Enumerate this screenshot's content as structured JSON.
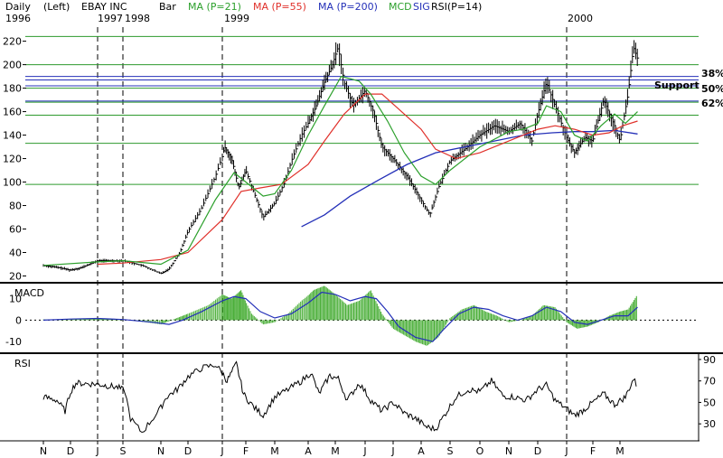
{
  "header": {
    "period": "Daily",
    "axis": "(Left)",
    "symbol": "EBAY INC",
    "style": "Bar",
    "ma21": "MA (P=21)",
    "ma55": "MA (P=55)",
    "ma200": "MA (P=200)",
    "mcd": "MCD",
    "sig": "SIG",
    "rsi": "RSI(P=14)"
  },
  "colors": {
    "price": "#000000",
    "ma21": "#2ca02c",
    "ma55": "#e0302a",
    "ma200": "#2430b8",
    "macd_hist": "#4caf3a",
    "signal": "#2430b8",
    "hline": "#2e9a2e",
    "fib": "#2430b8"
  },
  "year_labels": [
    "1996",
    "1997",
    "1998",
    "1999",
    "2000"
  ],
  "month_labels": [
    "N",
    "D",
    "J",
    "S",
    "N",
    "D",
    "J",
    "F",
    "M",
    "A",
    "M",
    "J",
    "J",
    "A",
    "S",
    "O",
    "N",
    "D",
    "J",
    "F",
    "M"
  ],
  "chart_data": [
    {
      "type": "ohlc",
      "panel": "price",
      "ylim": [
        15,
        232
      ],
      "yticks": [
        20,
        40,
        60,
        80,
        100,
        120,
        140,
        160,
        180,
        200,
        220
      ],
      "horizontal_lines": [
        224,
        200,
        180,
        168,
        157,
        133,
        98
      ],
      "fib_lines": [
        {
          "value": 190,
          "label": "38%"
        },
        {
          "value": 187,
          "label": "50%"
        },
        {
          "value": 182,
          "label": "Support"
        },
        {
          "value": 169,
          "label": "62%"
        }
      ],
      "close_path": [
        [
          0,
          29
        ],
        [
          0.6,
          27
        ],
        [
          1,
          25
        ],
        [
          1.4,
          27
        ],
        [
          2,
          33
        ],
        [
          2.4,
          33
        ],
        [
          3,
          33
        ],
        [
          3.5,
          29
        ],
        [
          4,
          22
        ],
        [
          4.3,
          26
        ],
        [
          4.7,
          40
        ],
        [
          5,
          58
        ],
        [
          5.4,
          78
        ],
        [
          5.8,
          105
        ],
        [
          6.1,
          130
        ],
        [
          6.4,
          120
        ],
        [
          6.7,
          95
        ],
        [
          7,
          110
        ],
        [
          7.3,
          90
        ],
        [
          7.6,
          70
        ],
        [
          8,
          82
        ],
        [
          8.3,
          100
        ],
        [
          8.5,
          118
        ],
        [
          8.8,
          140
        ],
        [
          9,
          150
        ],
        [
          9.3,
          165
        ],
        [
          9.6,
          185
        ],
        [
          9.9,
          200
        ],
        [
          10.1,
          215
        ],
        [
          10.3,
          185
        ],
        [
          10.6,
          165
        ],
        [
          11,
          178
        ],
        [
          11.3,
          160
        ],
        [
          11.6,
          130
        ],
        [
          12,
          120
        ],
        [
          12.5,
          105
        ],
        [
          13,
          85
        ],
        [
          13.3,
          72
        ],
        [
          13.6,
          95
        ],
        [
          14,
          118
        ],
        [
          14.5,
          128
        ],
        [
          15,
          140
        ],
        [
          15.5,
          148
        ],
        [
          16,
          143
        ],
        [
          16.4,
          150
        ],
        [
          16.8,
          135
        ],
        [
          17,
          158
        ],
        [
          17.3,
          185
        ],
        [
          17.6,
          165
        ],
        [
          18,
          138
        ],
        [
          18.3,
          125
        ],
        [
          18.7,
          138
        ],
        [
          19,
          135
        ],
        [
          19.4,
          170
        ],
        [
          19.8,
          148
        ],
        [
          20,
          135
        ],
        [
          20.3,
          175
        ],
        [
          20.5,
          215
        ],
        [
          20.65,
          205
        ]
      ],
      "ma21": [
        [
          0,
          29
        ],
        [
          2,
          32
        ],
        [
          3,
          33
        ],
        [
          4,
          30
        ],
        [
          5,
          42
        ],
        [
          5.8,
          85
        ],
        [
          6.5,
          108
        ],
        [
          7,
          100
        ],
        [
          7.6,
          88
        ],
        [
          8,
          90
        ],
        [
          8.5,
          110
        ],
        [
          9,
          140
        ],
        [
          9.6,
          165
        ],
        [
          10.2,
          190
        ],
        [
          10.8,
          186
        ],
        [
          11.2,
          175
        ],
        [
          11.8,
          152
        ],
        [
          12.4,
          125
        ],
        [
          13,
          105
        ],
        [
          13.5,
          98
        ],
        [
          14,
          110
        ],
        [
          15,
          130
        ],
        [
          16,
          143
        ],
        [
          16.5,
          145
        ],
        [
          17,
          150
        ],
        [
          17.3,
          165
        ],
        [
          17.8,
          160
        ],
        [
          18.3,
          140
        ],
        [
          18.8,
          135
        ],
        [
          19.3,
          148
        ],
        [
          19.8,
          158
        ],
        [
          20.2,
          150
        ],
        [
          20.65,
          160
        ]
      ],
      "ma55": [
        [
          2,
          30
        ],
        [
          3,
          31
        ],
        [
          4,
          34
        ],
        [
          5,
          40
        ],
        [
          6,
          68
        ],
        [
          6.8,
          92
        ],
        [
          7.5,
          95
        ],
        [
          8.2,
          98
        ],
        [
          9,
          115
        ],
        [
          9.6,
          135
        ],
        [
          10.3,
          158
        ],
        [
          11,
          175
        ],
        [
          11.6,
          175
        ],
        [
          12.3,
          160
        ],
        [
          13,
          145
        ],
        [
          13.5,
          128
        ],
        [
          14.2,
          120
        ],
        [
          15,
          125
        ],
        [
          16,
          135
        ],
        [
          17,
          145
        ],
        [
          17.6,
          148
        ],
        [
          18.3,
          145
        ],
        [
          19,
          140
        ],
        [
          19.6,
          142
        ],
        [
          20.1,
          148
        ],
        [
          20.65,
          152
        ]
      ],
      "ma200": [
        [
          8.8,
          62
        ],
        [
          9.6,
          72
        ],
        [
          10.5,
          88
        ],
        [
          11.5,
          102
        ],
        [
          12.5,
          115
        ],
        [
          13.5,
          125
        ],
        [
          14.5,
          130
        ],
        [
          15.5,
          135
        ],
        [
          16.5,
          140
        ],
        [
          17.5,
          142
        ],
        [
          18.3,
          143
        ],
        [
          19,
          143
        ],
        [
          19.8,
          144
        ],
        [
          20.65,
          141
        ]
      ]
    },
    {
      "type": "bar+line",
      "panel": "macd",
      "title": "MACD",
      "ylim": [
        -15,
        17
      ],
      "yticks": [
        10,
        0,
        -10
      ],
      "hist": [
        [
          0,
          0.3
        ],
        [
          1,
          0.3
        ],
        [
          2,
          0.8
        ],
        [
          3,
          0.4
        ],
        [
          3.6,
          -1
        ],
        [
          4,
          -2
        ],
        [
          4.6,
          1
        ],
        [
          5,
          3
        ],
        [
          5.6,
          7
        ],
        [
          6,
          12
        ],
        [
          6.4,
          10
        ],
        [
          6.8,
          14
        ],
        [
          7.2,
          3
        ],
        [
          7.6,
          -2
        ],
        [
          8,
          -1
        ],
        [
          8.4,
          3
        ],
        [
          8.8,
          9
        ],
        [
          9.2,
          14
        ],
        [
          9.6,
          16
        ],
        [
          10,
          12
        ],
        [
          10.4,
          7
        ],
        [
          10.8,
          9
        ],
        [
          11.2,
          14
        ],
        [
          11.6,
          3
        ],
        [
          12,
          -4
        ],
        [
          12.4,
          -7
        ],
        [
          12.8,
          -10
        ],
        [
          13.2,
          -12
        ],
        [
          13.6,
          -8
        ],
        [
          14,
          1
        ],
        [
          14.4,
          5
        ],
        [
          14.8,
          7
        ],
        [
          15.2,
          4
        ],
        [
          15.6,
          2
        ],
        [
          16,
          -1
        ],
        [
          16.4,
          0
        ],
        [
          16.8,
          2
        ],
        [
          17.2,
          7
        ],
        [
          17.6,
          6
        ],
        [
          18,
          -1
        ],
        [
          18.4,
          -4
        ],
        [
          18.8,
          -3
        ],
        [
          19.2,
          -1
        ],
        [
          19.6,
          2
        ],
        [
          20,
          4
        ],
        [
          20.3,
          5
        ],
        [
          20.65,
          12
        ]
      ],
      "signal": [
        [
          0,
          0
        ],
        [
          1,
          0.5
        ],
        [
          2,
          0.8
        ],
        [
          3,
          0.3
        ],
        [
          3.8,
          -1
        ],
        [
          4.3,
          -2
        ],
        [
          4.8,
          0
        ],
        [
          5.4,
          4
        ],
        [
          6,
          9
        ],
        [
          6.5,
          11
        ],
        [
          7,
          10
        ],
        [
          7.5,
          4
        ],
        [
          8,
          1
        ],
        [
          8.5,
          3
        ],
        [
          9,
          8
        ],
        [
          9.5,
          13
        ],
        [
          10,
          12
        ],
        [
          10.5,
          9
        ],
        [
          11,
          11
        ],
        [
          11.4,
          10
        ],
        [
          11.8,
          4
        ],
        [
          12.2,
          -3
        ],
        [
          12.8,
          -8
        ],
        [
          13.4,
          -10
        ],
        [
          13.8,
          -4
        ],
        [
          14.3,
          3
        ],
        [
          14.8,
          6
        ],
        [
          15.3,
          5
        ],
        [
          15.8,
          2
        ],
        [
          16.3,
          0
        ],
        [
          16.8,
          2
        ],
        [
          17.3,
          6
        ],
        [
          17.8,
          4
        ],
        [
          18.3,
          -1
        ],
        [
          18.8,
          -2
        ],
        [
          19.3,
          0
        ],
        [
          19.8,
          2
        ],
        [
          20.3,
          2
        ],
        [
          20.65,
          6
        ]
      ]
    },
    {
      "type": "line",
      "panel": "rsi",
      "title": "RSI",
      "ylim": [
        15,
        95
      ],
      "yticks": [
        90,
        70,
        50,
        30
      ],
      "series": [
        [
          0,
          55
        ],
        [
          0.5,
          52
        ],
        [
          0.8,
          42
        ],
        [
          1,
          60
        ],
        [
          1.2,
          68
        ],
        [
          2,
          67
        ],
        [
          2.8,
          64
        ],
        [
          3.05,
          61
        ],
        [
          3.2,
          35
        ],
        [
          3.5,
          22
        ],
        [
          3.9,
          40
        ],
        [
          4.2,
          55
        ],
        [
          4.6,
          62
        ],
        [
          5,
          74
        ],
        [
          5.4,
          82
        ],
        [
          5.8,
          85
        ],
        [
          6.2,
          70
        ],
        [
          6.6,
          86
        ],
        [
          6.9,
          58
        ],
        [
          7.3,
          45
        ],
        [
          7.6,
          38
        ],
        [
          8,
          55
        ],
        [
          8.4,
          62
        ],
        [
          8.8,
          70
        ],
        [
          9.1,
          78
        ],
        [
          9.4,
          58
        ],
        [
          9.8,
          75
        ],
        [
          10.1,
          72
        ],
        [
          10.4,
          52
        ],
        [
          10.8,
          68
        ],
        [
          11.2,
          52
        ],
        [
          11.6,
          42
        ],
        [
          12,
          50
        ],
        [
          12.4,
          40
        ],
        [
          12.8,
          35
        ],
        [
          13.2,
          27
        ],
        [
          13.5,
          25
        ],
        [
          13.8,
          38
        ],
        [
          14.2,
          55
        ],
        [
          14.6,
          62
        ],
        [
          15,
          60
        ],
        [
          15.4,
          70
        ],
        [
          15.8,
          56
        ],
        [
          16.2,
          55
        ],
        [
          16.6,
          52
        ],
        [
          17,
          62
        ],
        [
          17.3,
          66
        ],
        [
          17.6,
          52
        ],
        [
          18,
          44
        ],
        [
          18.3,
          38
        ],
        [
          18.6,
          42
        ],
        [
          19,
          50
        ],
        [
          19.4,
          58
        ],
        [
          19.8,
          48
        ],
        [
          20.2,
          55
        ],
        [
          20.5,
          72
        ],
        [
          20.65,
          64
        ]
      ]
    }
  ]
}
